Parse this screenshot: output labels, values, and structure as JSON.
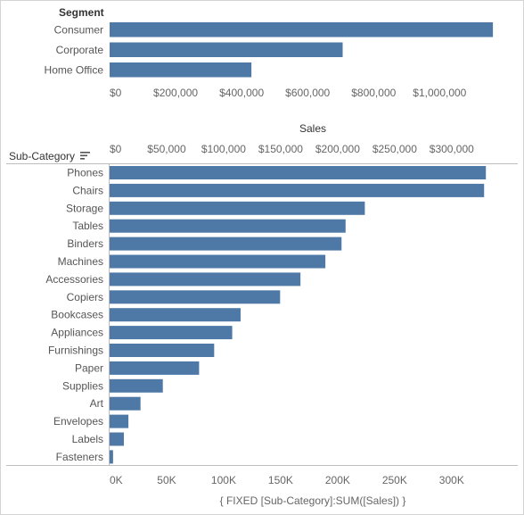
{
  "chart_data": [
    {
      "type": "bar",
      "orientation": "horizontal",
      "row_header": "Segment",
      "categories": [
        "Consumer",
        "Corporate",
        "Home Office"
      ],
      "values": [
        1161401,
        706146,
        429653
      ],
      "xlabel": "Sales",
      "xlim": [
        0,
        1180000
      ],
      "ticks": [
        0,
        200000,
        400000,
        600000,
        800000,
        1000000
      ],
      "tick_labels": [
        "$0",
        "$200,000",
        "$400,000",
        "$600,000",
        "$800,000",
        "$1,000,000"
      ],
      "color": "#4e79a7",
      "grid": false
    },
    {
      "type": "bar",
      "orientation": "horizontal",
      "row_header": "Sub-Category",
      "sorted": "descending",
      "categories": [
        "Phones",
        "Chairs",
        "Storage",
        "Tables",
        "Binders",
        "Machines",
        "Accessories",
        "Copiers",
        "Bookcases",
        "Appliances",
        "Furnishings",
        "Paper",
        "Supplies",
        "Art",
        "Envelopes",
        "Labels",
        "Fasteners"
      ],
      "values": [
        330007,
        328449,
        223844,
        206966,
        203413,
        189239,
        167380,
        149528,
        114880,
        107532,
        91705,
        78479,
        46674,
        27119,
        16476,
        12486,
        3024
      ],
      "xlabel_top": "Sales",
      "xlim": [
        0,
        340000
      ],
      "top_ticks": [
        0,
        50000,
        100000,
        150000,
        200000,
        250000,
        300000
      ],
      "top_tick_labels": [
        "$0",
        "$50,000",
        "$100,000",
        "$150,000",
        "$200,000",
        "$250,000",
        "$300,000"
      ],
      "bottom_ticks": [
        0,
        50000,
        100000,
        150000,
        200000,
        250000,
        300000
      ],
      "bottom_tick_labels": [
        "0K",
        "50K",
        "100K",
        "150K",
        "200K",
        "250K",
        "300K"
      ],
      "xlabel_bottom": "{ FIXED [Sub-Category]:SUM([Sales]) }",
      "color": "#4e79a7",
      "grid": false
    }
  ]
}
